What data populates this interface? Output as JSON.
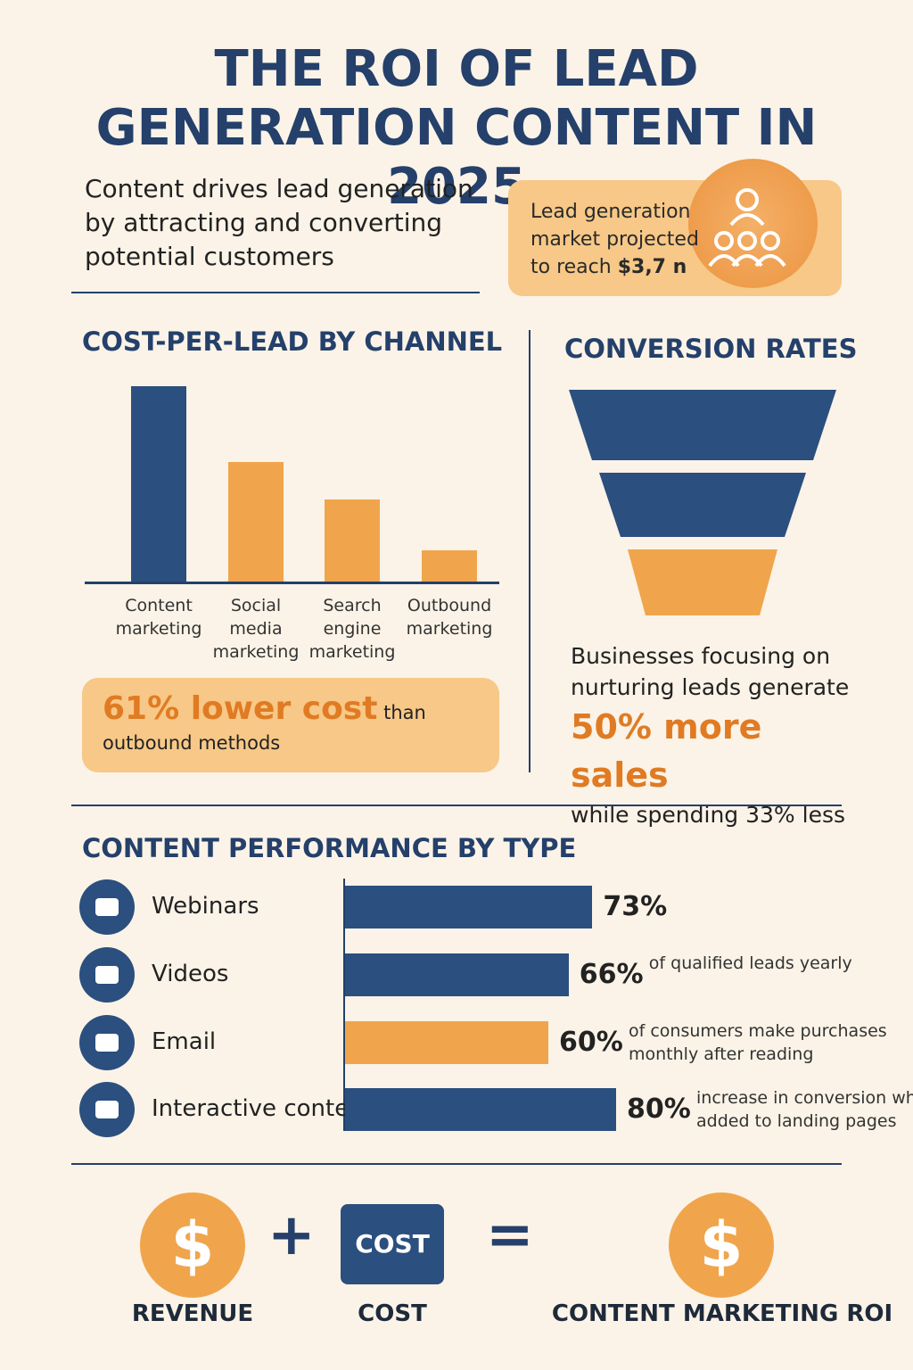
{
  "header": {
    "title": "THE ROI OF LEAD GENERATION CONTENT IN 2025",
    "intro": "Content drives lead generation by attracting and converting potential customers",
    "callout_text": "Lead generation market projected to reach",
    "callout_value": "$3,7 n"
  },
  "chart_data": [
    {
      "type": "bar",
      "title": "COST-PER-LEAD BY CHANNEL",
      "categories": [
        "Content marketing",
        "Social media marketing",
        "Search engine marketing",
        "Outbound marketing"
      ],
      "values": [
        95,
        58,
        40,
        15
      ],
      "colors": [
        "#2b4f7e",
        "#f0a54c",
        "#f0a54c",
        "#f0a54c"
      ],
      "ylim": [
        0,
        100
      ]
    },
    {
      "type": "barh",
      "title": "CONTENT PERFORMANCE BY TYPE",
      "categories": [
        "Webinars",
        "Videos",
        "Email",
        "Interactive content"
      ],
      "values": [
        73,
        66,
        60,
        80
      ],
      "value_labels": [
        "73%",
        "66%",
        "60%",
        "80%"
      ],
      "annotations": [
        null,
        "of qualified leads yearly",
        "of consumers make purchases monthly after reading",
        "increase in conversion when added to landing pages"
      ],
      "colors": [
        "#2b4f7e",
        "#2b4f7e",
        "#f0a54c",
        "#2b4f7e"
      ],
      "xlim": [
        0,
        100
      ]
    }
  ],
  "cost_note": {
    "highlight": "61% lower cost",
    "text": "than outbound methods"
  },
  "conversion": {
    "title": "CONVERSION RATES",
    "lead": "Businesses focusing on nurturing leads generate",
    "highlight": "50% more sales",
    "tail": "while spending 33% less"
  },
  "formula": {
    "revenue": "REVENUE",
    "cost_box": "COST",
    "cost": "COST",
    "result": "CONTENT MARKETING ROI",
    "plus": "+",
    "equals": "=",
    "dollar": "$"
  }
}
